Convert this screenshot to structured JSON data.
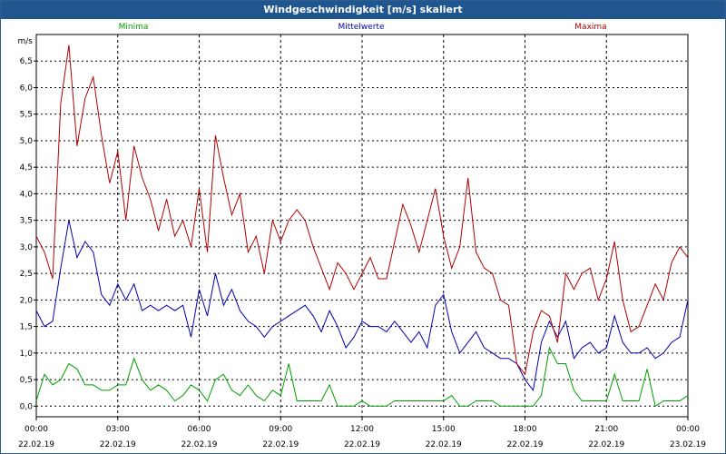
{
  "window": {
    "title": "Windgeschwindigkeit [m/s] skaliert"
  },
  "chart_data": {
    "type": "line",
    "title": "Windgeschwindigkeit [m/s] skaliert",
    "ylabel": "m/s",
    "ylim": [
      -0.2,
      7.0
    ],
    "xlim": [
      0,
      24
    ],
    "yticks": [
      "0,0",
      "0,5",
      "1,0",
      "1,5",
      "2,0",
      "2,5",
      "3,0",
      "3,5",
      "4,0",
      "4,5",
      "5,0",
      "5,5",
      "6,0",
      "6,5"
    ],
    "x_tick_positions": [
      0,
      3,
      6,
      9,
      12,
      15,
      18,
      21,
      24
    ],
    "xticks_time": [
      "00:00",
      "03:00",
      "06:00",
      "09:00",
      "12:00",
      "15:00",
      "18:00",
      "21:00",
      "00:00"
    ],
    "xticks_date": [
      "22.02.19",
      "22.02.19",
      "22.02.19",
      "22.02.19",
      "22.02.19",
      "22.02.19",
      "22.02.19",
      "22.02.19",
      "23.02.19"
    ],
    "grid": true,
    "legend": "top",
    "series": [
      {
        "name": "Minima",
        "color": "#00a000",
        "x": [
          0,
          0.3,
          0.6,
          0.9,
          1.2,
          1.5,
          1.8,
          2.1,
          2.4,
          2.7,
          3.0,
          3.3,
          3.6,
          3.9,
          4.2,
          4.5,
          4.8,
          5.1,
          5.4,
          5.7,
          6.0,
          6.3,
          6.6,
          6.9,
          7.2,
          7.5,
          7.8,
          8.1,
          8.4,
          8.7,
          9.0,
          9.3,
          9.6,
          9.9,
          10.2,
          10.5,
          10.8,
          11.1,
          11.4,
          11.7,
          12.0,
          12.3,
          12.6,
          12.9,
          13.2,
          13.5,
          13.8,
          14.1,
          14.4,
          14.7,
          15.0,
          15.3,
          15.6,
          15.9,
          16.2,
          16.5,
          16.8,
          17.1,
          17.4,
          17.7,
          18.0,
          18.3,
          18.6,
          18.9,
          19.2,
          19.5,
          19.8,
          20.1,
          20.4,
          20.7,
          21.0,
          21.3,
          21.6,
          21.9,
          22.2,
          22.5,
          22.8,
          23.1,
          23.4,
          23.7,
          24.0
        ],
        "values": [
          0.1,
          0.6,
          0.4,
          0.5,
          0.8,
          0.7,
          0.4,
          0.4,
          0.3,
          0.3,
          0.4,
          0.4,
          0.9,
          0.5,
          0.3,
          0.4,
          0.3,
          0.1,
          0.2,
          0.4,
          0.3,
          0.1,
          0.5,
          0.6,
          0.3,
          0.2,
          0.4,
          0.2,
          0.1,
          0.3,
          0.2,
          0.8,
          0.1,
          0.1,
          0.1,
          0.1,
          0.4,
          0.0,
          0.0,
          0.0,
          0.1,
          0.0,
          0.0,
          0.0,
          0.1,
          0.1,
          0.1,
          0.1,
          0.1,
          0.1,
          0.1,
          0.2,
          0.0,
          0.0,
          0.1,
          0.1,
          0.1,
          0.0,
          0.0,
          0.0,
          0.0,
          0.0,
          0.2,
          1.1,
          0.8,
          0.8,
          0.3,
          0.1,
          0.1,
          0.1,
          0.1,
          0.6,
          0.1,
          0.1,
          0.1,
          0.7,
          0.0,
          0.1,
          0.1,
          0.1,
          0.2
        ]
      },
      {
        "name": "Mittelwerte",
        "color": "#0000b0",
        "x": [
          0,
          0.3,
          0.6,
          0.9,
          1.2,
          1.5,
          1.8,
          2.1,
          2.4,
          2.7,
          3.0,
          3.3,
          3.6,
          3.9,
          4.2,
          4.5,
          4.8,
          5.1,
          5.4,
          5.7,
          6.0,
          6.3,
          6.6,
          6.9,
          7.2,
          7.5,
          7.8,
          8.1,
          8.4,
          8.7,
          9.0,
          9.3,
          9.6,
          9.9,
          10.2,
          10.5,
          10.8,
          11.1,
          11.4,
          11.7,
          12.0,
          12.3,
          12.6,
          12.9,
          13.2,
          13.5,
          13.8,
          14.1,
          14.4,
          14.7,
          15.0,
          15.3,
          15.6,
          15.9,
          16.2,
          16.5,
          16.8,
          17.1,
          17.4,
          17.7,
          18.0,
          18.3,
          18.6,
          18.9,
          19.2,
          19.5,
          19.8,
          20.1,
          20.4,
          20.7,
          21.0,
          21.3,
          21.6,
          21.9,
          22.2,
          22.5,
          22.8,
          23.1,
          23.4,
          23.7,
          24.0
        ],
        "values": [
          1.8,
          1.5,
          1.6,
          2.6,
          3.5,
          2.8,
          3.1,
          2.9,
          2.1,
          1.9,
          2.3,
          2.0,
          2.3,
          1.8,
          1.9,
          1.8,
          1.9,
          1.8,
          1.9,
          1.3,
          2.2,
          1.7,
          2.5,
          1.9,
          2.2,
          1.8,
          1.6,
          1.5,
          1.3,
          1.5,
          1.6,
          1.7,
          1.8,
          1.9,
          1.7,
          1.4,
          1.8,
          1.5,
          1.1,
          1.3,
          1.6,
          1.5,
          1.5,
          1.4,
          1.6,
          1.4,
          1.2,
          1.4,
          1.1,
          1.9,
          2.1,
          1.4,
          1.0,
          1.2,
          1.4,
          1.1,
          1.0,
          0.9,
          0.9,
          0.8,
          0.5,
          0.3,
          1.2,
          1.6,
          1.3,
          1.6,
          0.9,
          1.1,
          1.2,
          1.0,
          1.1,
          1.7,
          1.2,
          1.0,
          1.0,
          1.1,
          0.9,
          1.0,
          1.2,
          1.3,
          2.0
        ]
      },
      {
        "name": "Maxima",
        "color": "#b00000",
        "x": [
          0,
          0.3,
          0.6,
          0.9,
          1.2,
          1.5,
          1.8,
          2.1,
          2.4,
          2.7,
          3.0,
          3.3,
          3.6,
          3.9,
          4.2,
          4.5,
          4.8,
          5.1,
          5.4,
          5.7,
          6.0,
          6.3,
          6.6,
          6.9,
          7.2,
          7.5,
          7.8,
          8.1,
          8.4,
          8.7,
          9.0,
          9.3,
          9.6,
          9.9,
          10.2,
          10.5,
          10.8,
          11.1,
          11.4,
          11.7,
          12.0,
          12.3,
          12.6,
          12.9,
          13.2,
          13.5,
          13.8,
          14.1,
          14.4,
          14.7,
          15.0,
          15.3,
          15.6,
          15.9,
          16.2,
          16.5,
          16.8,
          17.1,
          17.4,
          17.7,
          18.0,
          18.3,
          18.6,
          18.9,
          19.2,
          19.5,
          19.8,
          20.1,
          20.4,
          20.7,
          21.0,
          21.3,
          21.6,
          21.9,
          22.2,
          22.5,
          22.8,
          23.1,
          23.4,
          23.7,
          24.0
        ],
        "values": [
          3.2,
          2.9,
          2.4,
          5.7,
          6.8,
          4.9,
          5.8,
          6.2,
          5.1,
          4.2,
          4.8,
          3.5,
          4.9,
          4.3,
          3.9,
          3.3,
          3.9,
          3.2,
          3.5,
          3.0,
          4.1,
          2.9,
          5.1,
          4.3,
          3.6,
          4.0,
          2.9,
          3.2,
          2.5,
          3.5,
          3.1,
          3.5,
          3.7,
          3.5,
          3.0,
          2.6,
          2.2,
          2.7,
          2.5,
          2.2,
          2.5,
          2.8,
          2.4,
          2.4,
          3.1,
          3.8,
          3.4,
          2.9,
          3.5,
          4.1,
          3.2,
          2.6,
          3.0,
          4.3,
          2.9,
          2.6,
          2.5,
          2.0,
          1.9,
          0.8,
          0.6,
          1.4,
          1.8,
          1.7,
          1.2,
          2.5,
          2.2,
          2.5,
          2.6,
          2.0,
          2.4,
          3.1,
          2.0,
          1.4,
          1.5,
          1.9,
          2.3,
          2.0,
          2.7,
          3.0,
          2.8
        ]
      }
    ]
  }
}
